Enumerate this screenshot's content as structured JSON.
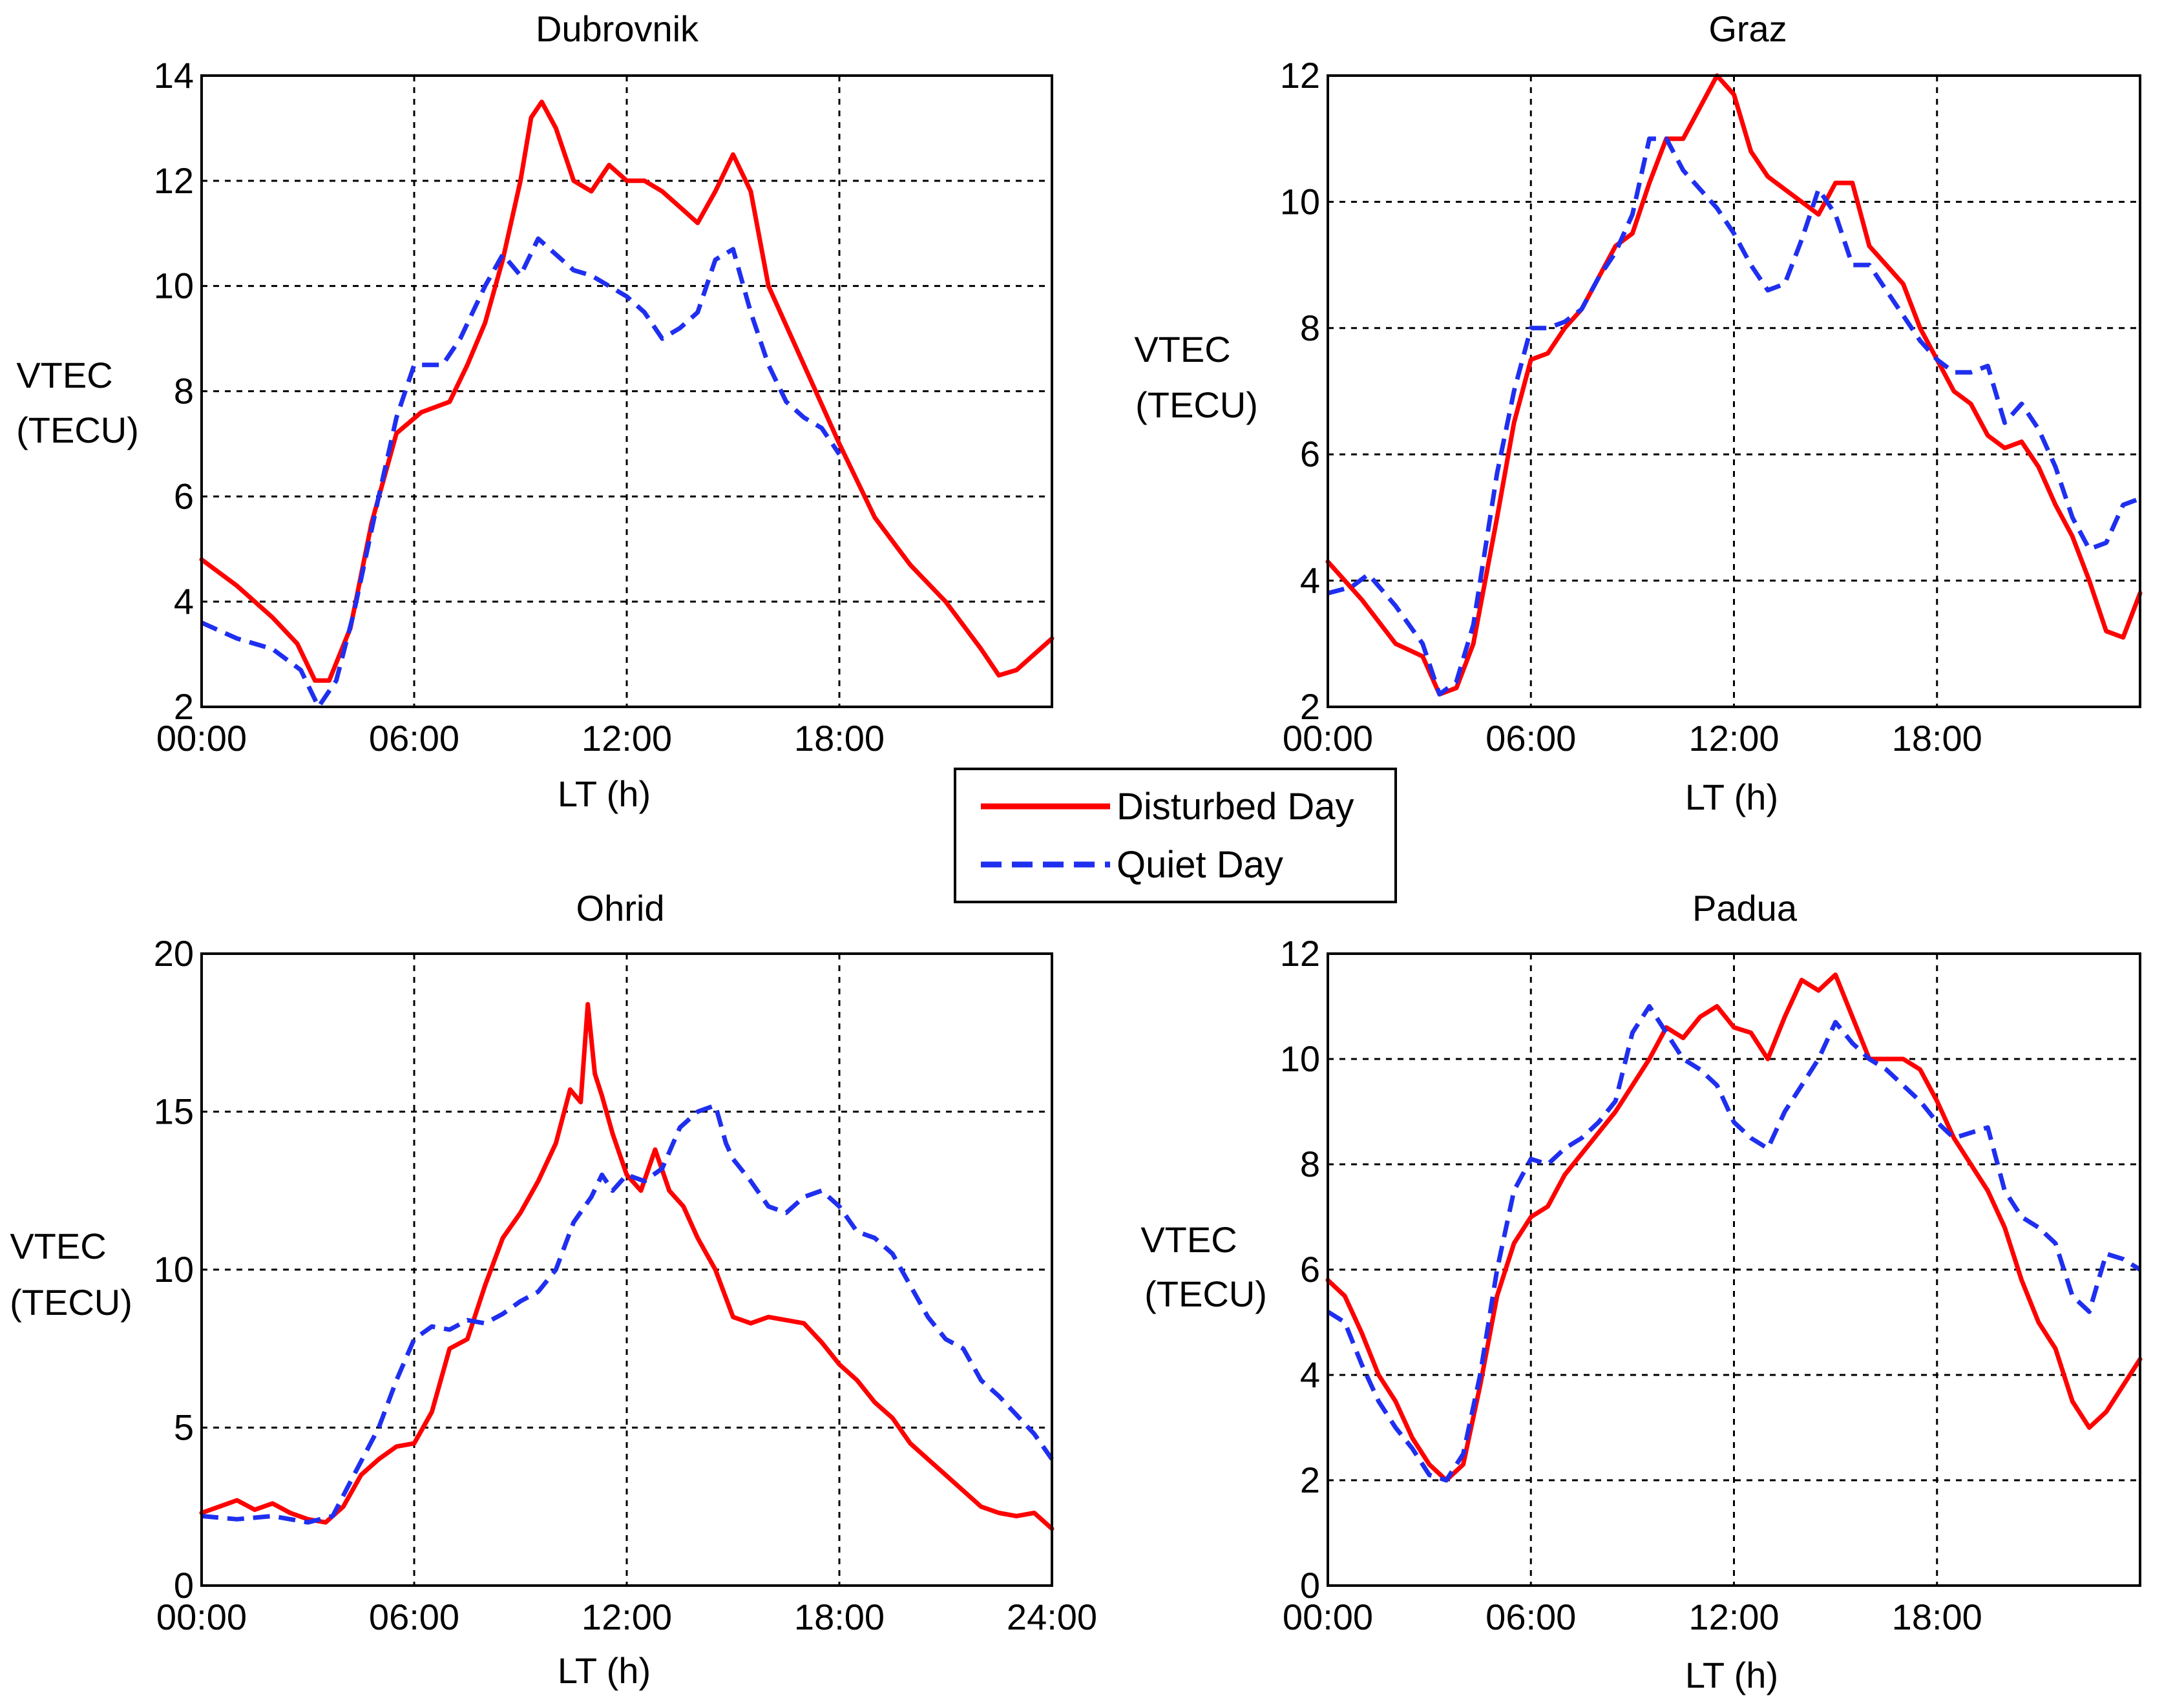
{
  "legend": {
    "placement": "center",
    "entries": [
      {
        "label": "Disturbed Day",
        "color": "#ff0000",
        "style": "solid"
      },
      {
        "label": "Quiet Day",
        "color": "#1f2ff0",
        "style": "dashed"
      }
    ]
  },
  "chart_data": [
    {
      "type": "line",
      "title": "Dubrovnik",
      "xlabel": "LT (h)",
      "ylabel_lines": [
        "VTEC",
        "(TECU)"
      ],
      "xlim": [
        0,
        24
      ],
      "ylim": [
        2,
        14
      ],
      "xticks": [
        0,
        6,
        12,
        18
      ],
      "xtick_labels": [
        "00:00",
        "06:00",
        "12:00",
        "18:00"
      ],
      "yticks": [
        2,
        4,
        6,
        8,
        10,
        12,
        14
      ],
      "ytick_labels": [
        "2",
        "4",
        "6",
        "8",
        "10",
        "12",
        "14"
      ],
      "grid": true,
      "series": [
        {
          "name": "Disturbed Day",
          "color": "#ff0000",
          "dashed": false,
          "x": [
            0,
            1,
            2,
            2.7,
            3.2,
            3.6,
            4.2,
            4.8,
            5.5,
            6.2,
            7,
            7.5,
            8,
            8.5,
            9,
            9.3,
            9.6,
            10,
            10.5,
            11,
            11.5,
            12,
            12.5,
            13,
            13.5,
            14,
            14.5,
            15,
            15.5,
            16,
            17,
            18,
            19,
            20,
            21,
            22,
            22.5,
            23,
            23.5,
            24
          ],
          "y": [
            4.8,
            4.3,
            3.7,
            3.2,
            2.5,
            2.5,
            3.5,
            5.5,
            7.2,
            7.6,
            7.8,
            8.5,
            9.3,
            10.5,
            12.0,
            13.2,
            13.5,
            13.0,
            12.0,
            11.8,
            12.3,
            12.0,
            12.0,
            11.8,
            11.5,
            11.2,
            11.8,
            12.5,
            11.8,
            10.0,
            8.5,
            7.0,
            5.6,
            4.7,
            4.0,
            3.1,
            2.6,
            2.7,
            3.0,
            3.3
          ]
        },
        {
          "name": "Quiet Day",
          "color": "#1f2ff0",
          "dashed": true,
          "x": [
            0,
            1,
            2,
            2.8,
            3.3,
            3.8,
            4.3,
            5,
            5.5,
            6,
            6.8,
            7.3,
            8,
            8.5,
            9,
            9.5,
            10,
            10.5,
            11,
            11.5,
            12,
            12.5,
            13,
            13.5,
            14,
            14.5,
            15,
            15.5,
            16,
            16.5,
            17,
            17.5,
            18
          ],
          "y": [
            3.6,
            3.3,
            3.1,
            2.7,
            2.0,
            2.5,
            3.8,
            6.0,
            7.5,
            8.5,
            8.5,
            9.0,
            10.0,
            10.6,
            10.2,
            10.9,
            10.6,
            10.3,
            10.2,
            10.0,
            9.8,
            9.5,
            9.0,
            9.2,
            9.5,
            10.5,
            10.7,
            9.5,
            8.5,
            7.8,
            7.5,
            7.3,
            6.8
          ]
        }
      ]
    },
    {
      "type": "line",
      "title": "Graz",
      "xlabel": "LT (h)",
      "ylabel_lines": [
        "VTEC",
        "(TECU)"
      ],
      "xlim": [
        0,
        24
      ],
      "ylim": [
        2,
        12
      ],
      "xticks": [
        0,
        6,
        12,
        18
      ],
      "xtick_labels": [
        "00:00",
        "06:00",
        "12:00",
        "18:00"
      ],
      "yticks": [
        2,
        4,
        6,
        8,
        10,
        12
      ],
      "ytick_labels": [
        "2",
        "4",
        "6",
        "8",
        "10",
        "12"
      ],
      "grid": true,
      "series": [
        {
          "name": "Disturbed Day",
          "color": "#ff0000",
          "dashed": false,
          "x": [
            0,
            1,
            2,
            2.8,
            3.3,
            3.8,
            4.3,
            5,
            5.5,
            6,
            6.5,
            7,
            7.5,
            8,
            8.5,
            9,
            9.5,
            10,
            10.5,
            11,
            11.5,
            12,
            12.5,
            13,
            13.5,
            14,
            14.5,
            15,
            15.5,
            16,
            16.5,
            17,
            17.5,
            18,
            18.5,
            19,
            19.5,
            20,
            20.5,
            21,
            21.5,
            22,
            22.5,
            23,
            23.5,
            24
          ],
          "y": [
            4.3,
            3.7,
            3.0,
            2.8,
            2.2,
            2.3,
            3.0,
            5.0,
            6.5,
            7.5,
            7.6,
            8.0,
            8.3,
            8.8,
            9.3,
            9.5,
            10.3,
            11.0,
            11.0,
            11.5,
            12.0,
            11.7,
            10.8,
            10.4,
            10.2,
            10.0,
            9.8,
            10.3,
            10.3,
            9.3,
            9.0,
            8.7,
            8.0,
            7.5,
            7.0,
            6.8,
            6.3,
            6.1,
            6.2,
            5.8,
            5.2,
            4.7,
            4.0,
            3.2,
            3.1,
            3.8
          ]
        },
        {
          "name": "Quiet Day",
          "color": "#1f2ff0",
          "dashed": true,
          "x": [
            0,
            0.7,
            1.2,
            2,
            2.8,
            3.3,
            3.8,
            4.3,
            5,
            5.5,
            6,
            6.5,
            7,
            7.5,
            8,
            8.5,
            9,
            9.5,
            10,
            10.5,
            11,
            11.5,
            12,
            12.5,
            13,
            13.5,
            14,
            14.5,
            15,
            15.5,
            16,
            16.5,
            17,
            17.5,
            18,
            18.5,
            19,
            19.5,
            20,
            20.5,
            21,
            21.5,
            22,
            22.5,
            23,
            23.5,
            24
          ],
          "y": [
            3.8,
            3.9,
            4.1,
            3.6,
            3.0,
            2.2,
            2.4,
            3.3,
            5.7,
            7.0,
            8.0,
            8.0,
            8.1,
            8.3,
            8.8,
            9.2,
            9.8,
            11.0,
            11.0,
            10.5,
            10.2,
            9.9,
            9.5,
            9.0,
            8.6,
            8.7,
            9.4,
            10.2,
            9.8,
            9.0,
            9.0,
            8.6,
            8.2,
            7.8,
            7.5,
            7.3,
            7.3,
            7.4,
            6.5,
            6.8,
            6.4,
            5.8,
            5.0,
            4.5,
            4.6,
            5.2,
            5.3
          ]
        }
      ]
    },
    {
      "type": "line",
      "title": "Ohrid",
      "xlabel": "LT (h)",
      "ylabel_lines": [
        "VTEC",
        "(TECU)"
      ],
      "xlim": [
        0,
        24
      ],
      "ylim": [
        0,
        20
      ],
      "xticks": [
        0,
        6,
        12,
        18,
        24
      ],
      "xtick_labels": [
        "00:00",
        "06:00",
        "12:00",
        "18:00",
        "24:00"
      ],
      "yticks": [
        0,
        5,
        10,
        15,
        20
      ],
      "ytick_labels": [
        "0",
        "5",
        "10",
        "15",
        "20"
      ],
      "grid": true,
      "series": [
        {
          "name": "Disturbed Day",
          "color": "#ff0000",
          "dashed": false,
          "x": [
            0,
            0.5,
            1,
            1.5,
            2,
            2.5,
            3,
            3.5,
            4,
            4.5,
            5,
            5.5,
            6,
            6.5,
            7,
            7.5,
            8,
            8.5,
            9,
            9.5,
            10,
            10.4,
            10.7,
            10.9,
            11.1,
            11.3,
            11.6,
            12,
            12.4,
            12.8,
            13.2,
            13.6,
            14,
            14.5,
            15,
            15.5,
            16,
            16.5,
            17,
            17.5,
            18,
            18.5,
            19,
            19.5,
            20,
            20.5,
            21,
            21.5,
            22,
            22.5,
            23,
            23.5,
            24
          ],
          "y": [
            2.3,
            2.5,
            2.7,
            2.4,
            2.6,
            2.3,
            2.1,
            2.0,
            2.5,
            3.5,
            4.0,
            4.4,
            4.5,
            5.5,
            7.5,
            7.8,
            9.5,
            11.0,
            11.8,
            12.8,
            14.0,
            15.7,
            15.3,
            18.4,
            16.2,
            15.5,
            14.3,
            13.0,
            12.5,
            13.8,
            12.5,
            12.0,
            11.0,
            10.0,
            8.5,
            8.3,
            8.5,
            8.4,
            8.3,
            7.7,
            7.0,
            6.5,
            5.8,
            5.3,
            4.5,
            4.0,
            3.5,
            3.0,
            2.5,
            2.3,
            2.2,
            2.3,
            1.8
          ]
        },
        {
          "name": "Quiet Day",
          "color": "#1f2ff0",
          "dashed": true,
          "x": [
            0,
            1,
            2,
            3,
            3.7,
            4.3,
            5,
            5.5,
            6,
            6.5,
            7,
            7.5,
            8,
            8.5,
            9,
            9.5,
            10,
            10.5,
            11,
            11.3,
            11.6,
            12,
            12.5,
            13,
            13.5,
            14,
            14.5,
            14.8,
            15,
            15.5,
            16,
            16.5,
            17,
            17.5,
            18,
            18.5,
            19,
            19.5,
            20,
            20.5,
            21,
            21.5,
            22,
            22.5,
            23,
            23.5,
            24
          ],
          "y": [
            2.2,
            2.1,
            2.2,
            2.0,
            2.2,
            3.5,
            5.0,
            6.5,
            7.8,
            8.2,
            8.1,
            8.4,
            8.3,
            8.6,
            9.0,
            9.3,
            10.0,
            11.5,
            12.3,
            13.0,
            12.5,
            13.0,
            12.8,
            13.2,
            14.5,
            15.0,
            15.2,
            14.0,
            13.5,
            12.8,
            12.0,
            11.8,
            12.3,
            12.5,
            12.0,
            11.2,
            11.0,
            10.5,
            9.5,
            8.5,
            7.8,
            7.5,
            6.5,
            6.0,
            5.4,
            4.8,
            4.0
          ]
        }
      ]
    },
    {
      "type": "line",
      "title": "Padua",
      "xlabel": "LT (h)",
      "ylabel_lines": [
        "VTEC",
        "(TECU)"
      ],
      "xlim": [
        0,
        24
      ],
      "ylim": [
        0,
        12
      ],
      "xticks": [
        0,
        6,
        12,
        18
      ],
      "xtick_labels": [
        "00:00",
        "06:00",
        "12:00",
        "18:00"
      ],
      "yticks": [
        0,
        2,
        4,
        6,
        8,
        10,
        12
      ],
      "ytick_labels": [
        "0",
        "2",
        "4",
        "6",
        "8",
        "10",
        "12"
      ],
      "grid": true,
      "series": [
        {
          "name": "Disturbed Day",
          "color": "#ff0000",
          "dashed": false,
          "x": [
            0,
            0.5,
            1,
            1.5,
            2,
            2.5,
            3,
            3.5,
            4,
            4.5,
            5,
            5.5,
            6,
            6.5,
            7,
            7.5,
            8,
            8.5,
            9,
            9.5,
            10,
            10.5,
            11,
            11.5,
            12,
            12.5,
            13,
            13.5,
            14,
            14.5,
            15,
            15.5,
            16,
            16.5,
            17,
            17.5,
            18,
            18.5,
            19,
            19.5,
            20,
            20.5,
            21,
            21.5,
            22,
            22.5,
            23,
            23.5,
            24
          ],
          "y": [
            5.8,
            5.5,
            4.8,
            4.0,
            3.5,
            2.8,
            2.3,
            2.0,
            2.3,
            3.8,
            5.5,
            6.5,
            7.0,
            7.2,
            7.8,
            8.2,
            8.6,
            9.0,
            9.5,
            10.0,
            10.6,
            10.4,
            10.8,
            11.0,
            10.6,
            10.5,
            10.0,
            10.8,
            11.5,
            11.3,
            11.6,
            10.8,
            10.0,
            10.0,
            10.0,
            9.8,
            9.2,
            8.5,
            8.0,
            7.5,
            6.8,
            5.8,
            5.0,
            4.5,
            3.5,
            3.0,
            3.3,
            3.8,
            4.3
          ]
        },
        {
          "name": "Quiet Day",
          "color": "#1f2ff0",
          "dashed": true,
          "x": [
            0,
            0.5,
            1,
            1.5,
            2,
            2.5,
            3,
            3.5,
            4,
            4.5,
            5,
            5.5,
            6,
            6.5,
            7,
            7.5,
            8,
            8.5,
            9,
            9.5,
            10,
            10.5,
            11,
            11.5,
            12,
            12.5,
            13,
            13.5,
            14,
            14.5,
            15,
            15.5,
            16,
            16.5,
            17,
            17.5,
            18,
            18.5,
            19,
            19.5,
            20,
            20.5,
            21,
            21.5,
            22,
            22.5,
            23,
            23.5,
            24
          ],
          "y": [
            5.2,
            5.0,
            4.2,
            3.5,
            3.0,
            2.6,
            2.1,
            2.0,
            2.5,
            4.0,
            6.0,
            7.5,
            8.1,
            8.0,
            8.3,
            8.5,
            8.8,
            9.2,
            10.5,
            11.0,
            10.5,
            10.0,
            9.8,
            9.5,
            8.8,
            8.5,
            8.3,
            9.0,
            9.5,
            10.0,
            10.7,
            10.3,
            10.0,
            9.8,
            9.5,
            9.2,
            8.8,
            8.5,
            8.6,
            8.7,
            7.5,
            7.0,
            6.8,
            6.5,
            5.5,
            5.2,
            6.3,
            6.2,
            6.0
          ]
        }
      ]
    }
  ]
}
